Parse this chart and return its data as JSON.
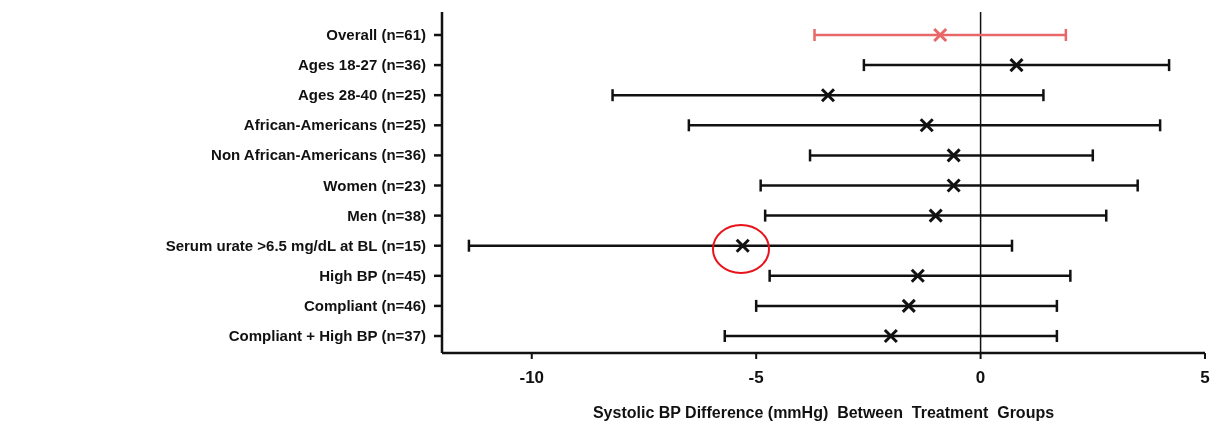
{
  "chart_data": {
    "type": "scatter",
    "orientation": "horizontal",
    "xlabel": "Systolic BP Difference (mmHg)  Between  Treatment  Groups",
    "categories": [
      "Overall (n=61)",
      "Ages 18-27 (n=36)",
      "Ages 28-40 (n=25)",
      "African-Americans (n=25)",
      "Non African-Americans (n=36)",
      "Women (n=23)",
      "Men (n=38)",
      "Serum urate >6.5 mg/dL at BL (n=15)",
      "High BP (n=45)",
      "Compliant (n=46)",
      "Compliant + High BP (n=37)"
    ],
    "series": [
      {
        "color": "#e8686a",
        "values": [
          -0.9,
          null,
          null,
          null,
          null,
          null,
          null,
          null,
          null,
          null,
          null
        ],
        "errors": [
          [
            -3.7,
            1.9
          ],
          null,
          null,
          null,
          null,
          null,
          null,
          null,
          null,
          null,
          null
        ]
      },
      {
        "color": "#111111",
        "values": [
          null,
          0.8,
          -3.4,
          -1.2,
          -0.6,
          -0.6,
          -1.0,
          -5.3,
          -1.4,
          -1.6,
          -2.0
        ],
        "errors": [
          null,
          [
            -2.6,
            4.2
          ],
          [
            -8.2,
            1.4
          ],
          [
            -6.5,
            4.0
          ],
          [
            -3.8,
            2.5
          ],
          [
            -4.9,
            3.5
          ],
          [
            -4.8,
            2.8
          ],
          [
            -11.4,
            0.7
          ],
          [
            -4.7,
            2.0
          ],
          [
            -5.0,
            1.7
          ],
          [
            -5.7,
            1.7
          ]
        ]
      }
    ],
    "xlim": [
      -12,
      5
    ],
    "xticks": [
      -10,
      -5,
      0,
      5
    ],
    "marker": "cross",
    "grid": false,
    "ref_lines": [
      {
        "axis": "x",
        "value": 0,
        "color": "#111111"
      }
    ]
  }
}
